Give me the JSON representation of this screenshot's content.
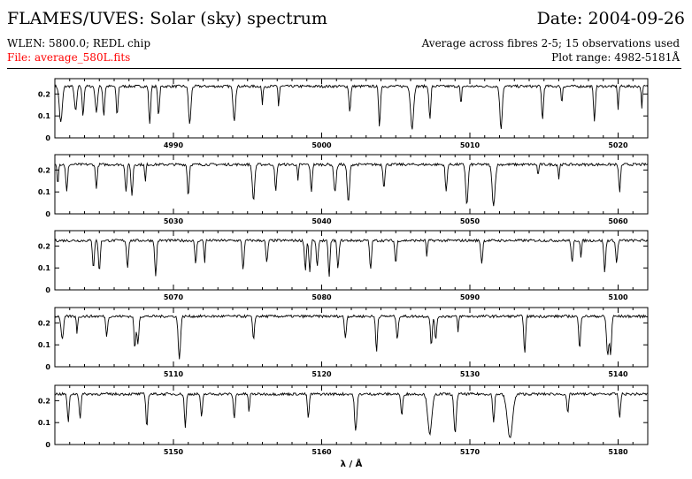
{
  "header": {
    "title": "FLAMES/UVES: Solar (sky) spectrum",
    "date": "Date: 2004-09-26",
    "setup": "WLEN: 5800.0; REDL chip",
    "averaging": "Average across fibres 2-5; 15 observations used",
    "file": "File: average_580L.fits",
    "plot_range": "Plot range: 4982-5181Å"
  },
  "colors": {
    "file_text": "#ff0000",
    "trace": "#000000",
    "background": "#ffffff"
  },
  "chart_data": {
    "type": "line",
    "xlabel": "λ / Å",
    "ylabel": "",
    "grid": false,
    "panels": [
      {
        "xlim": [
          4982,
          5022
        ],
        "ylim": [
          0,
          0.27
        ],
        "xticks": [
          4990,
          5000,
          5010,
          5020
        ],
        "yticks": [
          0,
          0.1,
          0.2
        ],
        "baseline": 0.235,
        "lines": [
          [
            4982.4,
            0.07,
            0.25
          ],
          [
            4983.4,
            0.12,
            0.2
          ],
          [
            4983.9,
            0.1,
            0.15
          ],
          [
            4984.8,
            0.12,
            0.2
          ],
          [
            4985.3,
            0.1,
            0.15
          ],
          [
            4986.2,
            0.1,
            0.15
          ],
          [
            4988.4,
            0.06,
            0.15
          ],
          [
            4989.0,
            0.1,
            0.15
          ],
          [
            4991.1,
            0.06,
            0.2
          ],
          [
            4994.1,
            0.08,
            0.2
          ],
          [
            4996.0,
            0.15,
            0.1
          ],
          [
            4997.1,
            0.14,
            0.1
          ],
          [
            5001.9,
            0.12,
            0.15
          ],
          [
            5003.9,
            0.05,
            0.15
          ],
          [
            5006.1,
            0.04,
            0.25
          ],
          [
            5007.3,
            0.08,
            0.15
          ],
          [
            5009.4,
            0.14,
            0.1
          ],
          [
            5012.1,
            0.04,
            0.2
          ],
          [
            5014.9,
            0.08,
            0.15
          ],
          [
            5016.2,
            0.15,
            0.1
          ],
          [
            5018.4,
            0.08,
            0.15
          ],
          [
            5020.0,
            0.13,
            0.1
          ],
          [
            5021.6,
            0.14,
            0.1
          ]
        ]
      },
      {
        "xlim": [
          5022,
          5062
        ],
        "ylim": [
          0,
          0.27
        ],
        "xticks": [
          5030,
          5040,
          5050,
          5060
        ],
        "yticks": [
          0,
          0.1,
          0.2
        ],
        "baseline": 0.225,
        "lines": [
          [
            5022.2,
            0.13,
            0.1
          ],
          [
            5022.8,
            0.1,
            0.15
          ],
          [
            5024.8,
            0.12,
            0.15
          ],
          [
            5026.8,
            0.1,
            0.15
          ],
          [
            5027.2,
            0.08,
            0.15
          ],
          [
            5028.1,
            0.14,
            0.1
          ],
          [
            5031.0,
            0.08,
            0.15
          ],
          [
            5035.4,
            0.06,
            0.2
          ],
          [
            5036.9,
            0.1,
            0.15
          ],
          [
            5038.4,
            0.15,
            0.1
          ],
          [
            5039.3,
            0.1,
            0.15
          ],
          [
            5040.9,
            0.1,
            0.2
          ],
          [
            5041.8,
            0.05,
            0.2
          ],
          [
            5044.2,
            0.12,
            0.15
          ],
          [
            5048.4,
            0.1,
            0.15
          ],
          [
            5049.8,
            0.04,
            0.2
          ],
          [
            5051.6,
            0.04,
            0.25
          ],
          [
            5054.6,
            0.17,
            0.1
          ],
          [
            5056.0,
            0.16,
            0.1
          ],
          [
            5060.1,
            0.1,
            0.15
          ]
        ]
      },
      {
        "xlim": [
          5062,
          5102
        ],
        "ylim": [
          0,
          0.27
        ],
        "xticks": [
          5070,
          5080,
          5090,
          5100
        ],
        "yticks": [
          0,
          0.1,
          0.2
        ],
        "baseline": 0.225,
        "lines": [
          [
            5064.6,
            0.1,
            0.15
          ],
          [
            5065.0,
            0.08,
            0.15
          ],
          [
            5066.9,
            0.1,
            0.15
          ],
          [
            5068.8,
            0.06,
            0.15
          ],
          [
            5071.5,
            0.12,
            0.15
          ],
          [
            5072.1,
            0.12,
            0.1
          ],
          [
            5074.7,
            0.09,
            0.15
          ],
          [
            5076.3,
            0.12,
            0.15
          ],
          [
            5078.9,
            0.09,
            0.15
          ],
          [
            5079.2,
            0.08,
            0.15
          ],
          [
            5079.7,
            0.1,
            0.15
          ],
          [
            5080.5,
            0.06,
            0.15
          ],
          [
            5081.1,
            0.09,
            0.15
          ],
          [
            5083.3,
            0.09,
            0.15
          ],
          [
            5085.0,
            0.12,
            0.15
          ],
          [
            5087.1,
            0.15,
            0.1
          ],
          [
            5090.8,
            0.12,
            0.15
          ],
          [
            5096.9,
            0.12,
            0.15
          ],
          [
            5097.5,
            0.14,
            0.1
          ],
          [
            5099.1,
            0.08,
            0.15
          ],
          [
            5099.9,
            0.12,
            0.15
          ]
        ]
      },
      {
        "xlim": [
          5102,
          5142
        ],
        "ylim": [
          0,
          0.27
        ],
        "xticks": [
          5110,
          5120,
          5130,
          5140
        ],
        "yticks": [
          0,
          0.1,
          0.2
        ],
        "baseline": 0.23,
        "lines": [
          [
            5102.5,
            0.12,
            0.2
          ],
          [
            5103.5,
            0.15,
            0.1
          ],
          [
            5105.5,
            0.14,
            0.15
          ],
          [
            5107.4,
            0.08,
            0.15
          ],
          [
            5107.6,
            0.1,
            0.15
          ],
          [
            5110.4,
            0.04,
            0.2
          ],
          [
            5115.4,
            0.12,
            0.15
          ],
          [
            5121.6,
            0.13,
            0.15
          ],
          [
            5123.7,
            0.07,
            0.15
          ],
          [
            5125.1,
            0.12,
            0.15
          ],
          [
            5127.4,
            0.09,
            0.15
          ],
          [
            5127.7,
            0.12,
            0.15
          ],
          [
            5129.2,
            0.16,
            0.1
          ],
          [
            5133.7,
            0.06,
            0.15
          ],
          [
            5137.4,
            0.08,
            0.15
          ],
          [
            5139.3,
            0.05,
            0.2
          ],
          [
            5139.5,
            0.06,
            0.15
          ]
        ]
      },
      {
        "xlim": [
          5142,
          5182
        ],
        "ylim": [
          0,
          0.27
        ],
        "xticks": [
          5150,
          5160,
          5170,
          5180
        ],
        "yticks": [
          0,
          0.1,
          0.2
        ],
        "baseline": 0.23,
        "lines": [
          [
            5142.9,
            0.1,
            0.15
          ],
          [
            5143.7,
            0.12,
            0.15
          ],
          [
            5148.2,
            0.08,
            0.15
          ],
          [
            5150.8,
            0.08,
            0.15
          ],
          [
            5151.9,
            0.12,
            0.15
          ],
          [
            5154.1,
            0.12,
            0.15
          ],
          [
            5155.1,
            0.14,
            0.1
          ],
          [
            5159.1,
            0.12,
            0.15
          ],
          [
            5162.3,
            0.06,
            0.2
          ],
          [
            5165.4,
            0.13,
            0.15
          ],
          [
            5167.3,
            0.05,
            0.35
          ],
          [
            5169.0,
            0.05,
            0.2
          ],
          [
            5171.6,
            0.1,
            0.15
          ],
          [
            5172.7,
            0.03,
            0.45
          ],
          [
            5176.6,
            0.14,
            0.15
          ],
          [
            5180.1,
            0.12,
            0.15
          ]
        ]
      }
    ]
  }
}
